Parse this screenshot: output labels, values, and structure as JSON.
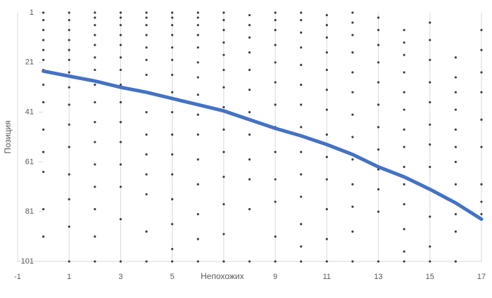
{
  "chart_data": {
    "type": "scatter",
    "x_label": "Непохожих",
    "y_label": "Позиция",
    "xlim": [
      -1,
      17
    ],
    "xticks": [
      -1,
      1,
      3,
      5,
      7,
      9,
      11,
      13,
      15,
      17
    ],
    "ylim": [
      101,
      1
    ],
    "yticks": [
      1,
      21,
      41,
      61,
      81,
      101
    ],
    "y_reversed": true,
    "grid": true,
    "point_color": "#404040",
    "series": [
      {
        "x": 0,
        "values": [
          1,
          4,
          8,
          12,
          16,
          20,
          24,
          30,
          37,
          48,
          57,
          65,
          80,
          91
        ]
      },
      {
        "x": 1,
        "values": [
          1,
          4,
          8,
          12,
          16,
          20,
          25,
          31,
          38,
          46,
          55,
          66,
          76,
          87,
          101
        ]
      },
      {
        "x": 2,
        "values": [
          1,
          3,
          6,
          10,
          14,
          19,
          24,
          30,
          37,
          45,
          53,
          62,
          71,
          80,
          91,
          101
        ]
      },
      {
        "x": 3,
        "values": [
          1,
          3,
          6,
          10,
          14,
          19,
          24,
          30,
          37,
          45,
          53,
          62,
          71,
          84,
          101
        ]
      },
      {
        "x": 4,
        "values": [
          1,
          3,
          6,
          10,
          15,
          20,
          26,
          33,
          41,
          50,
          58,
          66,
          74,
          89,
          101
        ]
      },
      {
        "x": 5,
        "values": [
          1,
          3,
          6,
          10,
          15,
          20,
          26,
          33,
          41,
          50,
          58,
          66,
          76,
          86,
          96,
          101
        ]
      },
      {
        "x": 6,
        "values": [
          1,
          3,
          6,
          10,
          15,
          21,
          27,
          34,
          42,
          50,
          60,
          70,
          82,
          92,
          101
        ]
      },
      {
        "x": 7,
        "values": [
          1,
          4,
          8,
          13,
          18,
          24,
          31,
          39,
          48,
          57,
          67,
          78,
          90,
          101
        ]
      },
      {
        "x": 8,
        "values": [
          2,
          6,
          11,
          17,
          24,
          32,
          41,
          50,
          60,
          68,
          80,
          101
        ]
      },
      {
        "x": 9,
        "values": [
          1,
          4,
          8,
          14,
          21,
          29,
          38,
          47,
          57,
          68,
          77,
          91,
          101
        ]
      },
      {
        "x": 10,
        "values": [
          1,
          4,
          9,
          15,
          22,
          30,
          38,
          47,
          57,
          66,
          75,
          86,
          95,
          101
        ]
      },
      {
        "x": 11,
        "values": [
          2,
          6,
          11,
          17,
          24,
          32,
          40,
          50,
          59,
          68,
          80,
          92,
          101
        ]
      },
      {
        "x": 12,
        "values": [
          1,
          5,
          10,
          17,
          25,
          33,
          42,
          51,
          60,
          70,
          79,
          89,
          101
        ]
      },
      {
        "x": 13,
        "values": [
          3,
          8,
          14,
          21,
          29,
          38,
          47,
          56,
          64,
          72,
          81,
          101
        ]
      },
      {
        "x": 14,
        "values": [
          8,
          13,
          18,
          25,
          33,
          40,
          48,
          55,
          63,
          70,
          78,
          88,
          97,
          101
        ]
      },
      {
        "x": 15,
        "values": [
          5,
          12,
          20,
          29,
          37,
          46,
          54,
          63,
          72,
          83,
          95,
          101
        ]
      },
      {
        "x": 16,
        "values": [
          19,
          27,
          33,
          40,
          48,
          55,
          61,
          70,
          82,
          89,
          101
        ]
      },
      {
        "x": 17,
        "values": [
          8,
          16,
          25,
          33,
          44,
          55,
          70,
          77,
          82
        ]
      }
    ],
    "trend": {
      "color": "#4472c4",
      "x": [
        0,
        1,
        2,
        3,
        4,
        5,
        6,
        7,
        8,
        9,
        10,
        11,
        12,
        13,
        14,
        15,
        16,
        17
      ],
      "values": [
        24.5,
        26.5,
        28.5,
        31,
        33,
        35.5,
        38,
        40.5,
        44,
        47.5,
        50.5,
        54,
        58,
        63,
        67,
        72,
        77.5,
        84
      ]
    }
  }
}
